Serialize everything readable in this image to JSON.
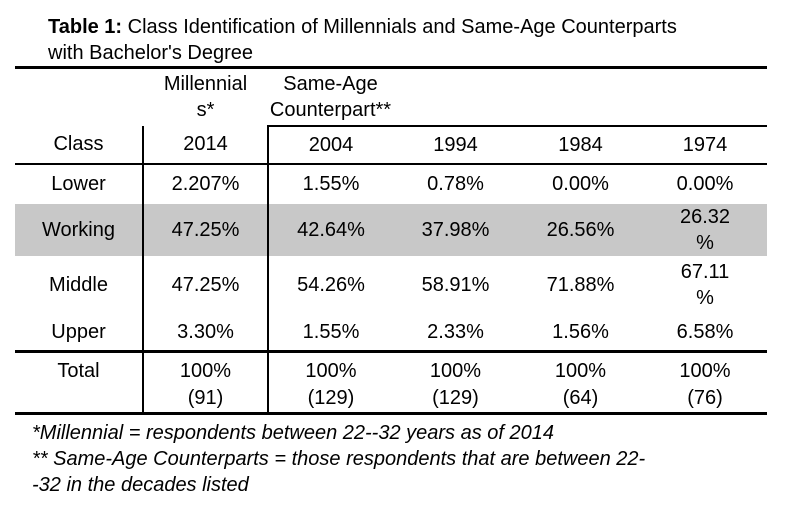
{
  "colors": {
    "highlight_row": "#c8c8c8",
    "text": "#000000",
    "rule": "#000000",
    "background": "#ffffff"
  },
  "title": {
    "bold": "Table 1:",
    "line1_rest": " Class Identification of Millennials and Same-Age Counterparts",
    "line2": "with Bachelor's Degree"
  },
  "table": {
    "group_headers": {
      "millennials": "Millennial\ns*",
      "same_age": "Same-Age\nCounterpart**"
    },
    "columns": [
      "Class",
      "2014",
      "2004",
      "1994",
      "1984",
      "1974"
    ],
    "rows": [
      {
        "label": "Lower",
        "highlighted": false,
        "values": [
          "2.207%",
          "1.55%",
          "0.78%",
          "0.00%",
          "0.00%"
        ]
      },
      {
        "label": "Working",
        "highlighted": true,
        "values": [
          "47.25%",
          "42.64%",
          "37.98%",
          "26.56%",
          "26.32\n%"
        ]
      },
      {
        "label": "Middle",
        "highlighted": false,
        "values": [
          "47.25%",
          "54.26%",
          "58.91%",
          "71.88%",
          "67.11\n%"
        ]
      },
      {
        "label": "Upper",
        "highlighted": false,
        "values": [
          "3.30%",
          "1.55%",
          "2.33%",
          "1.56%",
          "6.58%"
        ]
      }
    ],
    "total": {
      "label": "Total",
      "values": [
        "100%\n(91)",
        "100%\n(129)",
        "100%\n(129)",
        "100%\n(64)",
        "100%\n(76)"
      ]
    }
  },
  "footnotes": [
    "*Millennial = respondents between 22--32 years as of 2014",
    "** Same-Age Counterparts = those respondents that are between 22-\n-32 in the decades listed"
  ]
}
